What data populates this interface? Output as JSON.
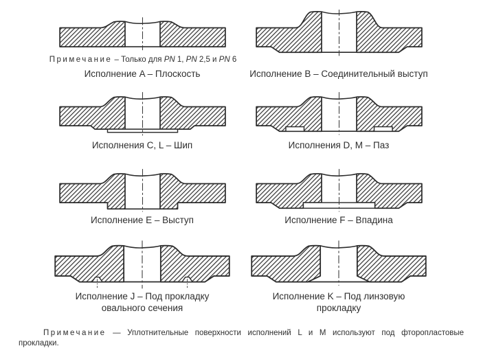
{
  "page": {
    "background": "#ffffff"
  },
  "colors": {
    "line": "#2b2b2b",
    "text": "#2e2e2e",
    "hatch": "#2e2e2e"
  },
  "diagrams": [
    {
      "variant": "A",
      "caption": "Исполнение A – Плоскость"
    },
    {
      "variant": "B",
      "caption": "Исполнение B – Соединительный выступ"
    },
    {
      "variant": "C",
      "caption": "Исполнения C, L – Шип"
    },
    {
      "variant": "D",
      "caption": "Исполнения D, M – Паз"
    },
    {
      "variant": "E",
      "caption": "Исполнение E – Выступ"
    },
    {
      "variant": "F",
      "caption": "Исполнение F – Впадина"
    },
    {
      "variant": "J",
      "caption": "Исполнение J – Под прокладку",
      "caption2": "овального сечения"
    },
    {
      "variant": "K",
      "caption": "Исполнение K – Под линзовую",
      "caption2": "прокладку"
    }
  ],
  "note_a": {
    "label": "Примечание",
    "sep": " – ",
    "t1": "Только для ",
    "pn1": "PN",
    "v1": " 1, ",
    "pn2": "PN",
    "v2": " 2,5 и ",
    "pn3": "PN",
    "v3": " 6"
  },
  "footnote": {
    "label": "Примечание",
    "dash": " — ",
    "text": "Уплотнительные поверхности исполнений L и M используют под фторопластовые прокладки."
  }
}
